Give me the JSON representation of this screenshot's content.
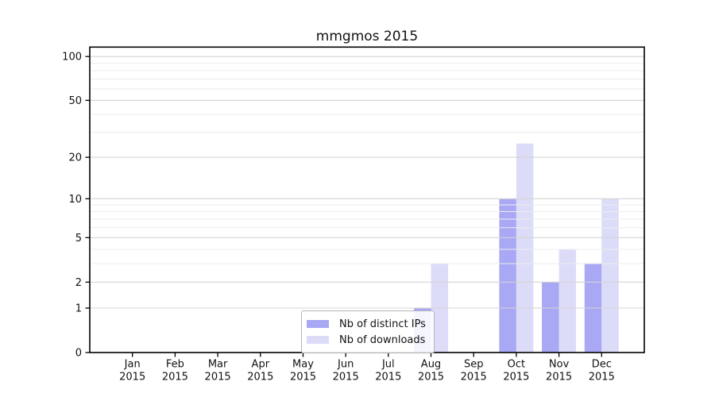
{
  "chart_data": {
    "type": "bar",
    "title": "mmgmos 2015",
    "categories": [
      "Jan",
      "Feb",
      "Mar",
      "Apr",
      "May",
      "Jun",
      "Jul",
      "Aug",
      "Sep",
      "Oct",
      "Nov",
      "Dec"
    ],
    "year": "2015",
    "series": [
      {
        "name": "Nb of distinct IPs",
        "color": "#a8a8f5",
        "values": [
          0,
          0,
          0,
          0,
          0,
          0,
          0,
          1,
          0,
          10,
          2,
          3
        ]
      },
      {
        "name": "Nb of downloads",
        "color": "#dcdcf8",
        "values": [
          0,
          0,
          0,
          0,
          0,
          0,
          0,
          3,
          0,
          25,
          4,
          10
        ]
      }
    ],
    "xlabel": "",
    "ylabel": "",
    "yscale": "log1p",
    "yticks": [
      0,
      1,
      2,
      5,
      10,
      20,
      50,
      100
    ],
    "minor_yticks": [
      3,
      4,
      6,
      7,
      8,
      9,
      30,
      40,
      60,
      70,
      80,
      90
    ],
    "ylim": [
      0,
      116
    ],
    "grid": "horizontal, drawn over bars",
    "legend_position": "lower center inside plot",
    "colors": {
      "major_grid": "#d4d4d4",
      "minor_grid": "#ececec",
      "spine": "#000000",
      "background": "#ffffff"
    }
  }
}
